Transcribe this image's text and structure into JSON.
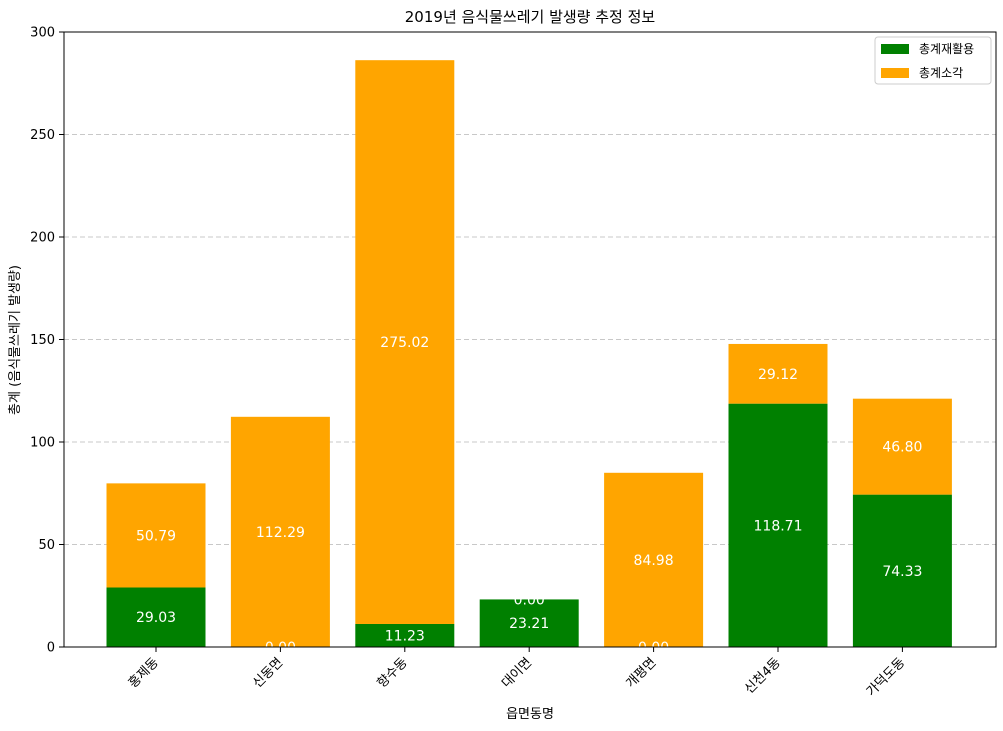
{
  "chart_data": {
    "type": "bar",
    "stacked": true,
    "title": "2019년 음식물쓰레기 발생량 추정 정보",
    "xlabel": "읍면동명",
    "ylabel": "총계 (음식물쓰레기 발생량)",
    "ylim": [
      0,
      300
    ],
    "yticks": [
      0,
      50,
      100,
      150,
      200,
      250,
      300
    ],
    "grid": "y-dashed",
    "legend_position": "top-right",
    "categories": [
      "홍제동",
      "신동면",
      "향수동",
      "대이면",
      "개평면",
      "신천4동",
      "가덕도동"
    ],
    "series": [
      {
        "name": "총계재활용",
        "color": "#008000",
        "values": [
          29.03,
          0.0,
          11.23,
          23.21,
          0.0,
          118.71,
          74.33
        ]
      },
      {
        "name": "총계소각",
        "color": "#FFA500",
        "values": [
          50.79,
          112.29,
          275.02,
          0.0,
          84.98,
          29.12,
          46.8
        ]
      }
    ]
  }
}
